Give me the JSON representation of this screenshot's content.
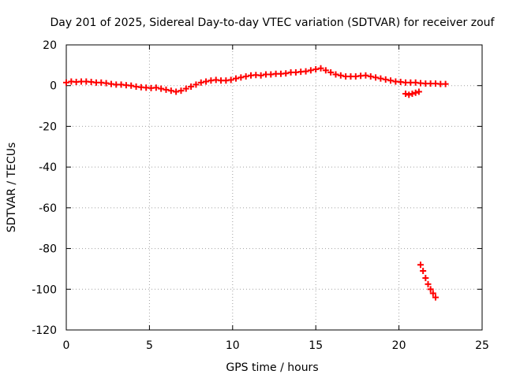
{
  "chart_data": {
    "type": "scatter",
    "title": "Day 201 of 2025, Sidereal Day-to-day VTEC variation (SDTVAR) for receiver zouf",
    "xlabel": "GPS time / hours",
    "ylabel": "SDTVAR / TECUs",
    "xlim": [
      0,
      25
    ],
    "ylim": [
      -120,
      20
    ],
    "xticks": [
      0,
      5,
      10,
      15,
      20,
      25
    ],
    "yticks": [
      -120,
      -100,
      -80,
      -60,
      -40,
      -20,
      0,
      20
    ],
    "xtick_labels": [
      "0",
      "5",
      "10",
      "15",
      "20",
      "25"
    ],
    "ytick_labels": [
      "-120",
      "-100",
      "-80",
      "-60",
      "-40",
      "-20",
      "0",
      "20"
    ],
    "grid": true,
    "marker": "plus",
    "color": "#ff0000",
    "series": [
      {
        "name": "main",
        "x": [
          0.0,
          0.3,
          0.6,
          0.9,
          1.2,
          1.5,
          1.8,
          2.1,
          2.4,
          2.7,
          3.0,
          3.3,
          3.6,
          3.9,
          4.2,
          4.5,
          4.8,
          5.1,
          5.4,
          5.7,
          6.0,
          6.3,
          6.6,
          6.9,
          7.2,
          7.5,
          7.8,
          8.1,
          8.4,
          8.7,
          9.0,
          9.3,
          9.6,
          9.9,
          10.2,
          10.5,
          10.8,
          11.1,
          11.4,
          11.7,
          12.0,
          12.3,
          12.6,
          12.9,
          13.2,
          13.5,
          13.8,
          14.1,
          14.4,
          14.7,
          15.0,
          15.3,
          15.6,
          15.9,
          16.2,
          16.5,
          16.8,
          17.1,
          17.4,
          17.7,
          18.0,
          18.3,
          18.6,
          18.9,
          19.2,
          19.5,
          19.8,
          20.1,
          20.4,
          20.7,
          21.0,
          21.3,
          21.6,
          21.9,
          22.2,
          22.5,
          22.8
        ],
        "y": [
          1.5,
          2.0,
          1.8,
          2.0,
          2.0,
          1.8,
          1.5,
          1.5,
          1.2,
          0.8,
          0.5,
          0.5,
          0.2,
          0.0,
          -0.5,
          -0.8,
          -1.0,
          -1.2,
          -1.0,
          -1.5,
          -2.0,
          -2.5,
          -3.0,
          -2.5,
          -1.5,
          -0.5,
          0.5,
          1.5,
          2.0,
          2.5,
          2.8,
          2.5,
          2.5,
          2.8,
          3.5,
          4.0,
          4.5,
          5.0,
          5.2,
          5.0,
          5.5,
          5.5,
          5.8,
          5.8,
          6.0,
          6.5,
          6.5,
          6.8,
          7.0,
          7.5,
          8.0,
          8.5,
          7.5,
          6.5,
          5.5,
          5.0,
          4.5,
          4.5,
          4.5,
          4.8,
          5.0,
          4.5,
          4.0,
          3.5,
          3.0,
          2.5,
          2.0,
          1.8,
          1.5,
          1.5,
          1.5,
          1.2,
          1.0,
          1.0,
          1.0,
          0.8,
          0.8
        ]
      },
      {
        "name": "minor",
        "x": [
          20.4,
          20.6,
          20.8,
          21.0,
          21.2
        ],
        "y": [
          -4.0,
          -4.5,
          -4.0,
          -3.5,
          -3.0
        ]
      },
      {
        "name": "outlier",
        "x": [
          21.3,
          21.45,
          21.6,
          21.75,
          21.9,
          22.05,
          22.2
        ],
        "y": [
          -88.0,
          -91.0,
          -94.5,
          -97.5,
          -100.0,
          -102.0,
          -104.0
        ]
      }
    ]
  }
}
